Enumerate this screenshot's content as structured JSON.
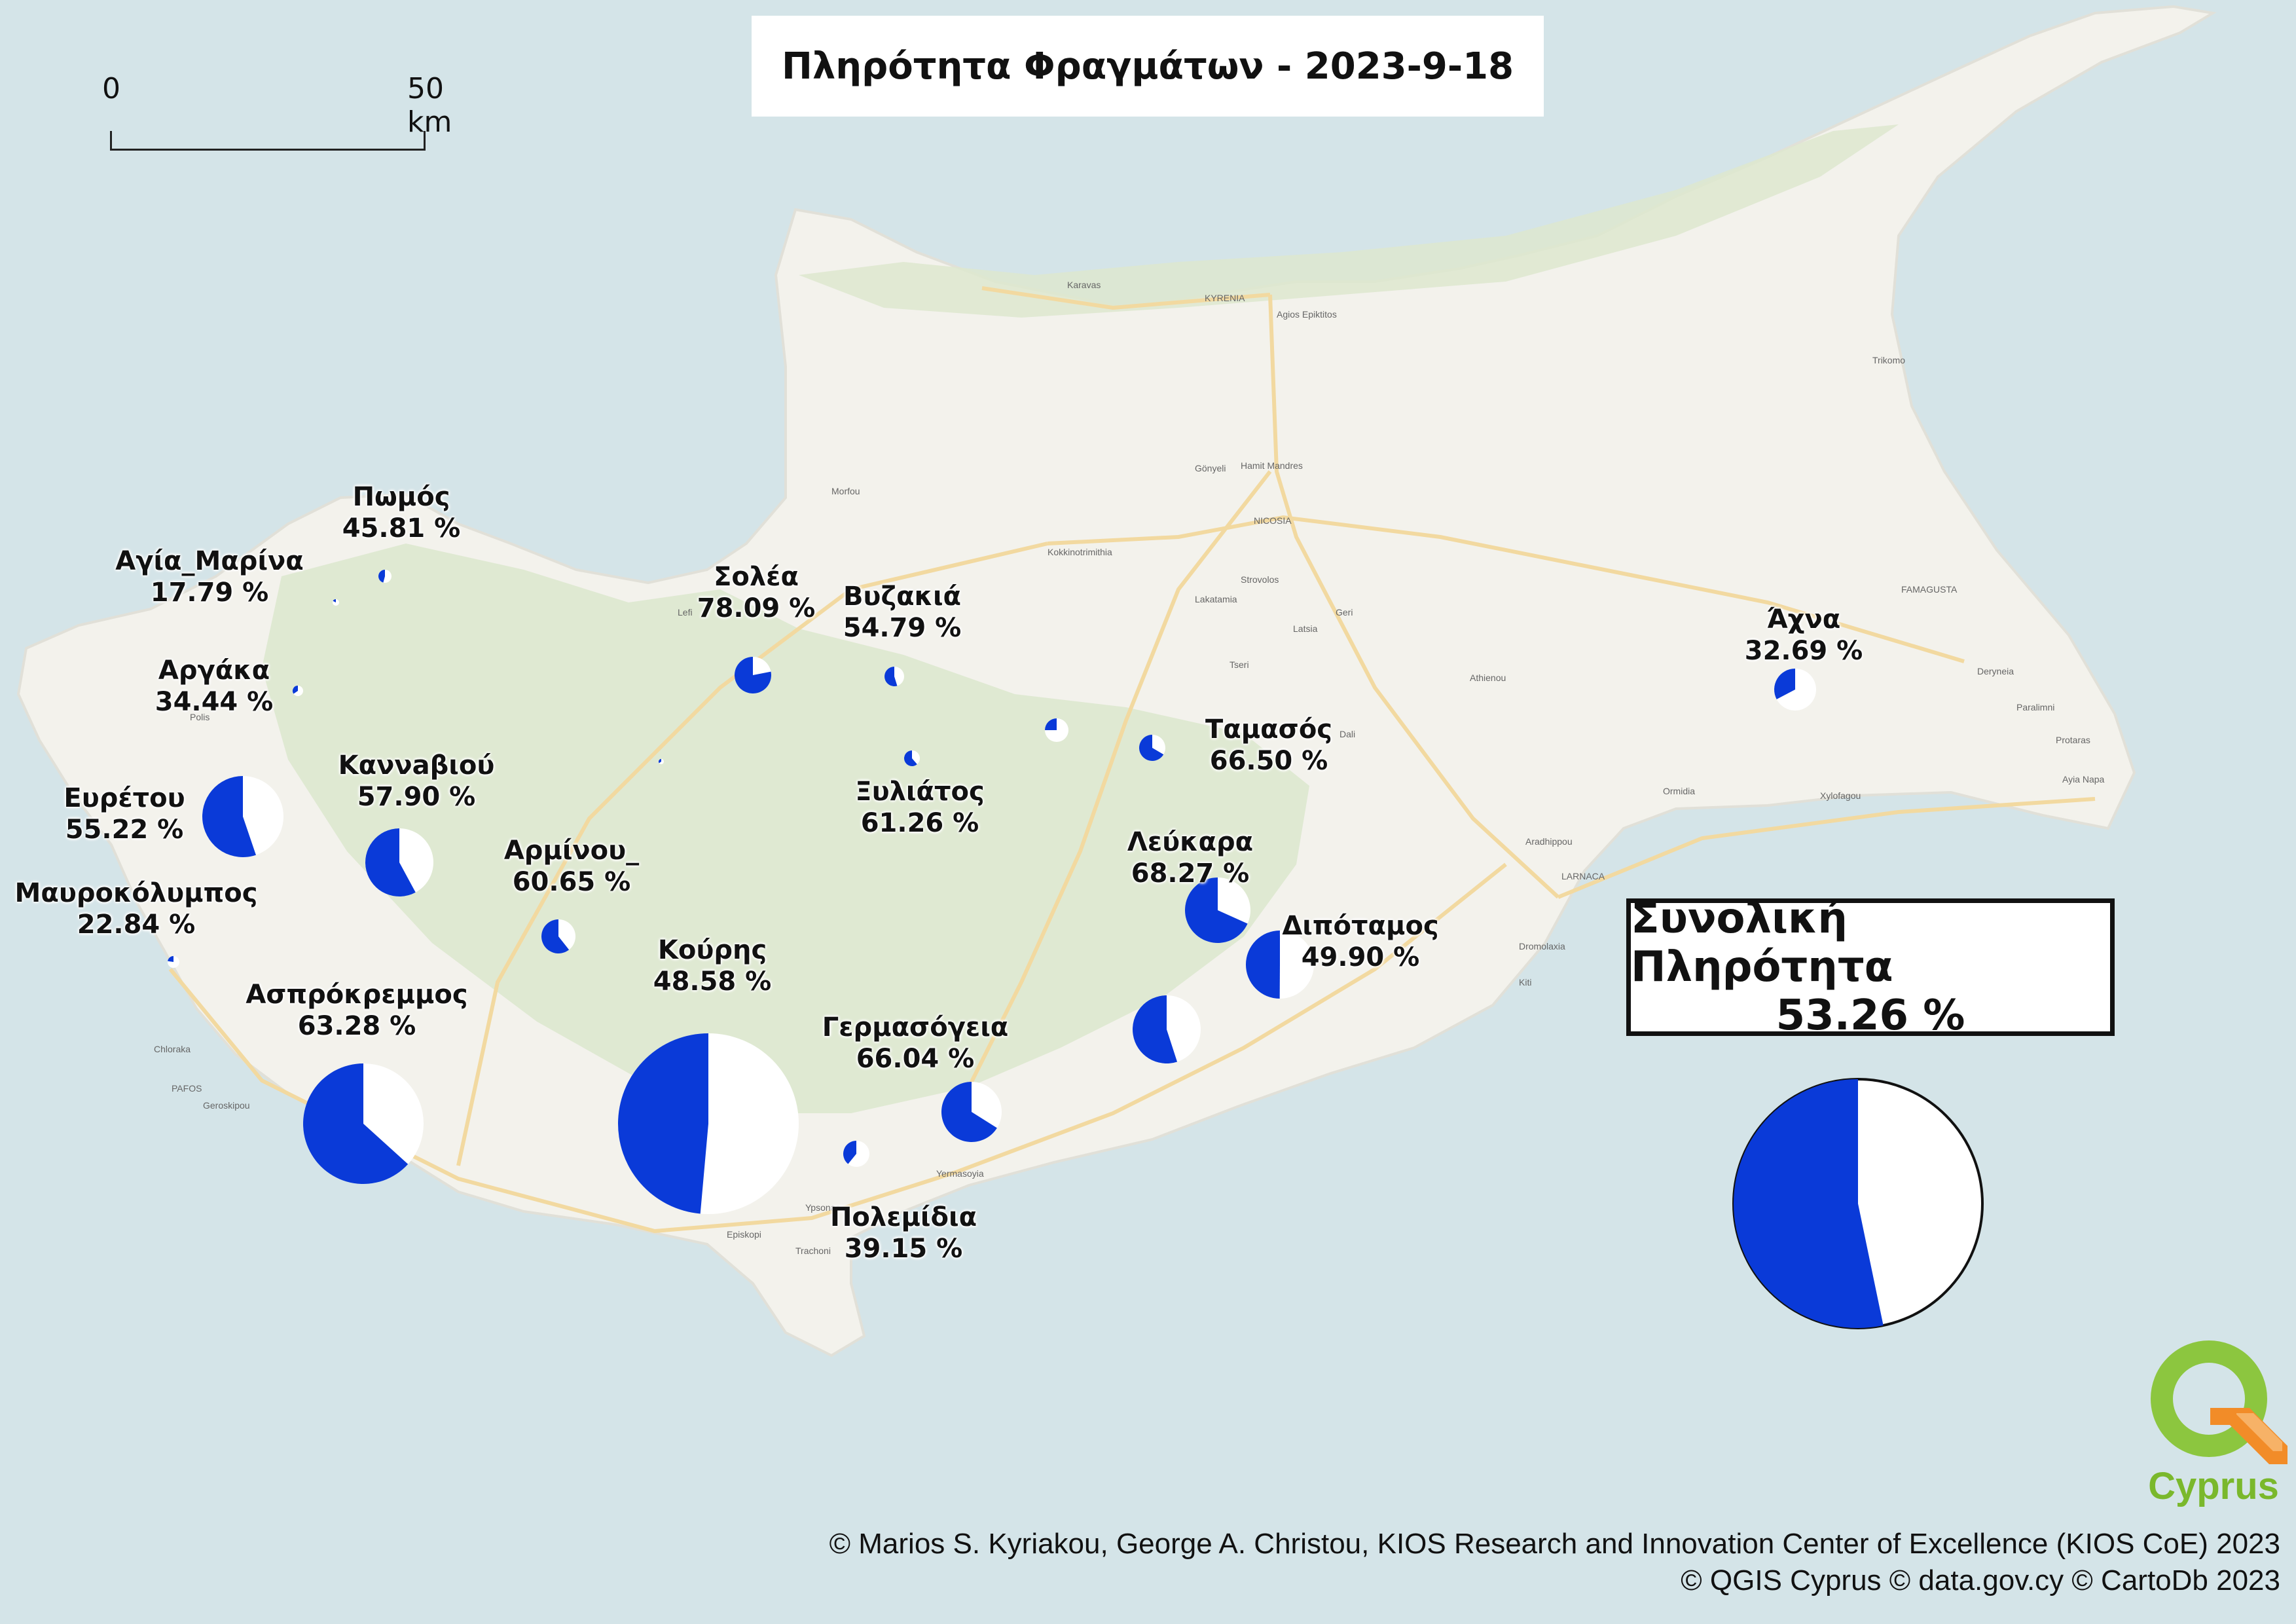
{
  "title": "Πληρότητα Φραγμάτων - 2023-9-18",
  "scale": {
    "start_label": "0",
    "end_label": "50 km"
  },
  "colors": {
    "sea": "#d4e4e8",
    "land": "#f3f2ec",
    "forest": "#dde8cf",
    "road": "#f2d9a0",
    "filled": "#0a3ad8",
    "empty": "#ffffff"
  },
  "dams": [
    {
      "name": "Πωμός",
      "percent": "45.81 %",
      "fill": 0.4581
    },
    {
      "name": "Αγία_Μαρίνα",
      "percent": "17.79 %",
      "fill": 0.1779
    },
    {
      "name": "Αργάκα",
      "percent": "34.44 %",
      "fill": 0.3444
    },
    {
      "name": "Ευρέτου",
      "percent": "55.22 %",
      "fill": 0.5522
    },
    {
      "name": "Καννaβιού",
      "percent": "57.90 %",
      "fill": 0.579
    },
    {
      "name": "Μαυροκόλυμπος",
      "percent": "22.84 %",
      "fill": 0.2284
    },
    {
      "name": "Αρμίνου_",
      "percent": "60.65 %",
      "fill": 0.6065
    },
    {
      "name": "Ασπρόκρεμμος",
      "percent": "63.28 %",
      "fill": 0.6328
    },
    {
      "name": "Κούρης",
      "percent": "48.58 %",
      "fill": 0.4858
    },
    {
      "name": "Σολέα",
      "percent": "78.09 %",
      "fill": 0.7809
    },
    {
      "name": "Βυζακιά",
      "percent": "54.79 %",
      "fill": 0.5479
    },
    {
      "name": "Ξυλιάτος",
      "percent": "61.26 %",
      "fill": 0.6126
    },
    {
      "name": "Ταμασός",
      "percent": "66.50 %",
      "fill": 0.665
    },
    {
      "name": "Λεύκαρα",
      "percent": "68.27 %",
      "fill": 0.6827
    },
    {
      "name": "Διπόταμος",
      "percent": "49.90 %",
      "fill": 0.499
    },
    {
      "name": "Γερμασόγεια",
      "percent": "66.04 %",
      "fill": 0.6604
    },
    {
      "name": "Πολεμίδια",
      "percent": "39.15 %",
      "fill": 0.3915
    },
    {
      "name": "Άχνα",
      "percent": "32.69 %",
      "fill": 0.3269
    }
  ],
  "unlabeled_dams": [
    {
      "fill": 0.35
    },
    {
      "fill": 0.25
    },
    {
      "fill": 0.55
    }
  ],
  "total": {
    "label": "Συνολική Πληρότητα",
    "percent": "53.26 %",
    "fill": 0.5326
  },
  "place_names": [
    "Karavas",
    "KYRENIA",
    "Agios Epiktitos",
    "Trikomo",
    "Morfou",
    "Gönyeli",
    "Hamit Mandres",
    "NICOSIA",
    "Kokkinotrimithia",
    "Strovolos",
    "Lakatamia",
    "Latsia",
    "Geri",
    "Tseri",
    "Dali",
    "Athienou",
    "FAMAGUSTA",
    "Deryneia",
    "Paralimni",
    "Protaras",
    "Ayia Napa",
    "Xylofagou",
    "Ormidia",
    "Aradhippou",
    "LARNACA",
    "Dromolaxia",
    "Kiti",
    "Polis",
    "Lefi",
    "Chloraka",
    "PAFOS",
    "Geroskipou",
    "Yermasoyia",
    "Ypsonas",
    "Episkopi",
    "Trachoni"
  ],
  "credits": [
    "© Marios S. Kyriakou, George A. Christou, KIOS Research and Innovation Center of Excellence (KIOS CoE) 2023",
    "© QGIS Cyprus © data.gov.cy © CartoDb 2023"
  ],
  "logo_text": "Cyprus"
}
